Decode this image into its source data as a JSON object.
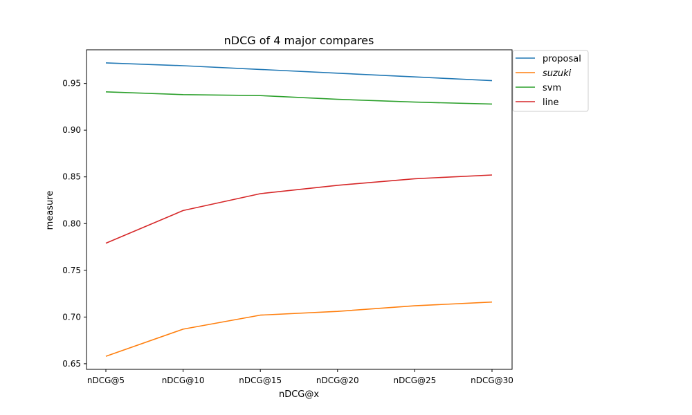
{
  "chart_data": {
    "type": "line",
    "title": "nDCG of 4 major compares",
    "xlabel": "nDCG@x",
    "ylabel": "measure",
    "categories": [
      "nDCG@5",
      "nDCG@10",
      "nDCG@15",
      "nDCG@20",
      "nDCG@25",
      "nDCG@30"
    ],
    "ylim": [
      0.644,
      0.986
    ],
    "yticks": [
      0.65,
      0.7,
      0.75,
      0.8,
      0.85,
      0.9,
      0.95
    ],
    "ytick_labels": [
      "0.65",
      "0.70",
      "0.75",
      "0.80",
      "0.85",
      "0.90",
      "0.95"
    ],
    "grid": false,
    "legend_position": "outside-top-right",
    "series": [
      {
        "name": "proposal",
        "color": "#1f77b4",
        "italic": false,
        "values": [
          0.972,
          0.969,
          0.965,
          0.961,
          0.957,
          0.953
        ]
      },
      {
        "name": "suzuki",
        "color": "#ff7f0e",
        "italic": true,
        "values": [
          0.658,
          0.687,
          0.702,
          0.706,
          0.712,
          0.716
        ]
      },
      {
        "name": "svm",
        "color": "#2ca02c",
        "italic": false,
        "values": [
          0.941,
          0.938,
          0.937,
          0.933,
          0.93,
          0.928
        ]
      },
      {
        "name": "line",
        "color": "#d62728",
        "italic": false,
        "values": [
          0.779,
          0.814,
          0.832,
          0.841,
          0.848,
          0.852
        ]
      }
    ]
  }
}
